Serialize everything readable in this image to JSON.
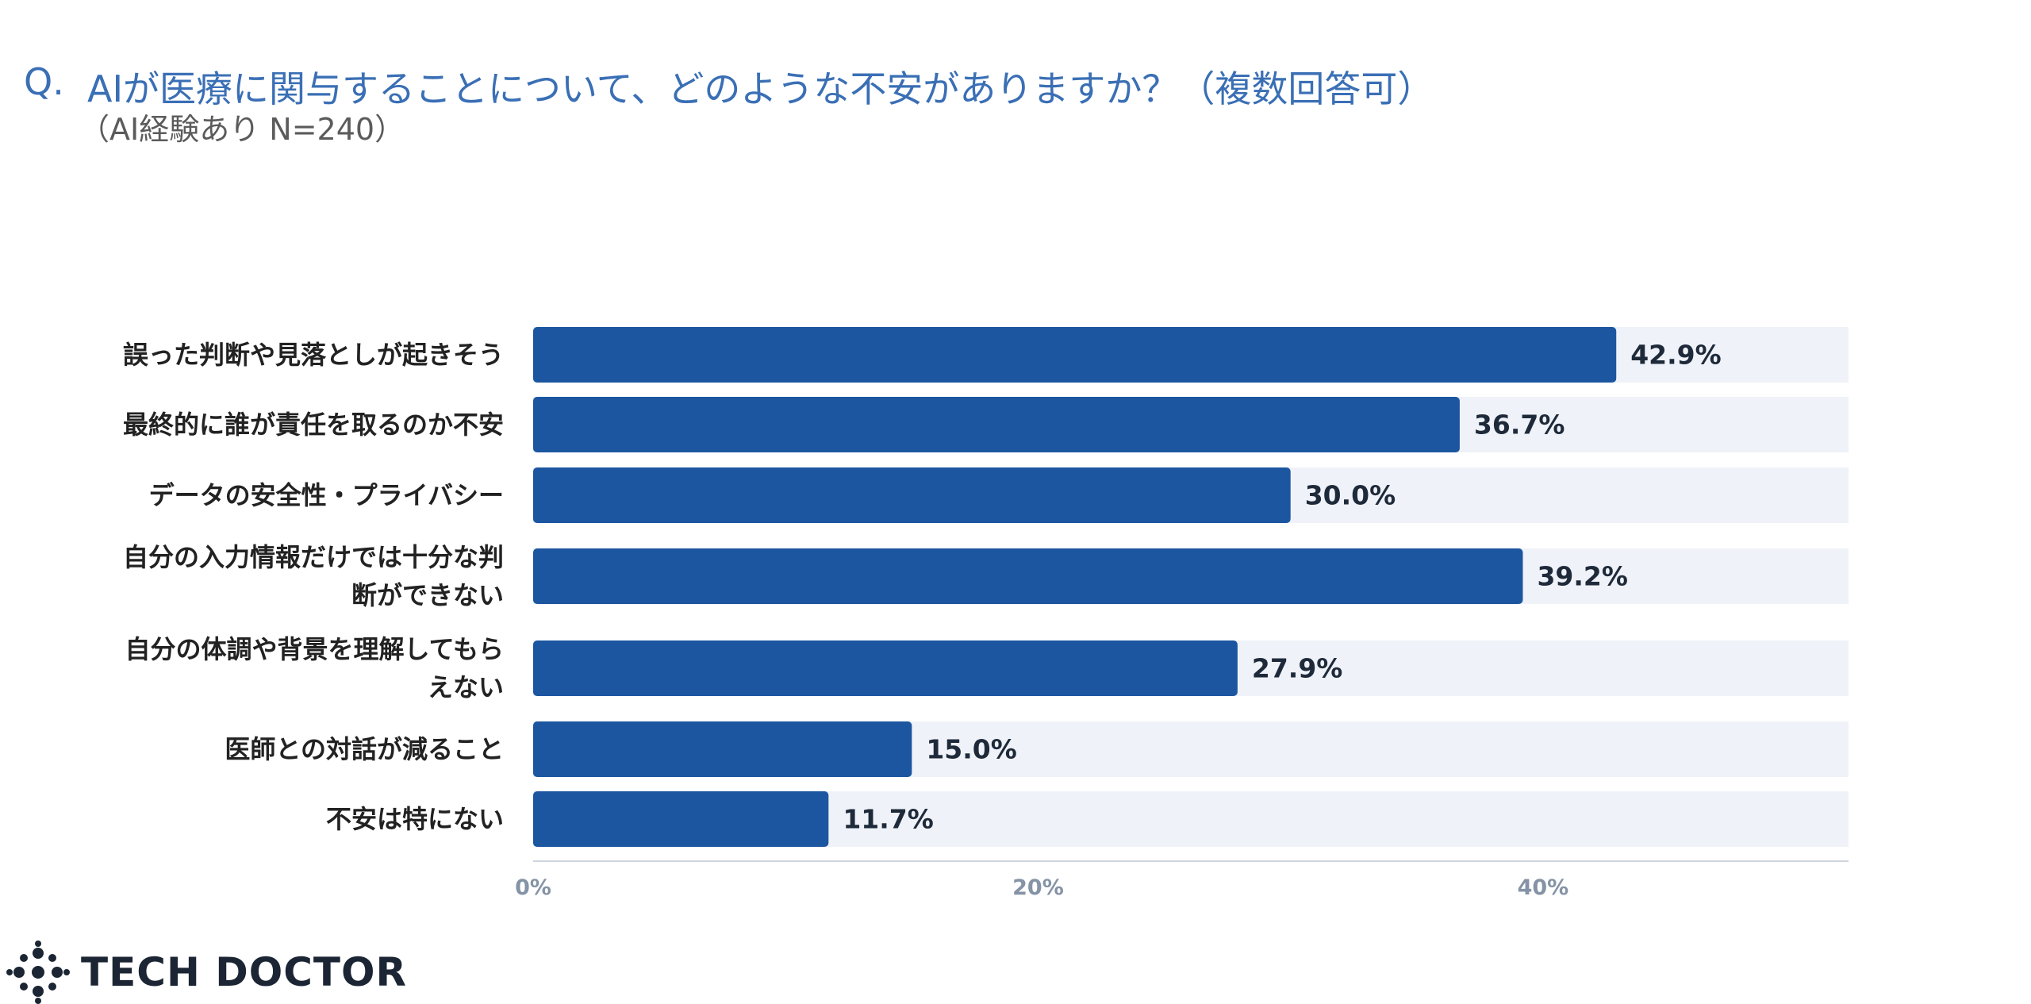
{
  "header": {
    "prefix": "Q.",
    "title": "AIが医療に関与することについて、どのような不安がありますか？（複数回答可）",
    "subtitle": "（AI経験あり N=240）"
  },
  "brand": {
    "logo_text": "TECH DOCTOR"
  },
  "colors": {
    "bar": "#1c56a0",
    "track": "#eff2f8",
    "axis": "#cfd5df"
  },
  "chart_data": {
    "type": "bar",
    "orientation": "horizontal",
    "categories": [
      "誤った判断や見落としが起きそう",
      "最終的に誰が責任を取るのか不安",
      "データの安全性・プライバシー",
      "自分の入力情報だけでは十分な判断ができない",
      "自分の体調や背景を理解してもらえない",
      "医師との対話が減ること",
      "不安は特にない"
    ],
    "category_lines": [
      [
        "誤った判断や見落としが起きそう"
      ],
      [
        "最終的に誰が責任を取るのか不安"
      ],
      [
        "データの安全性・プライバシー"
      ],
      [
        "自分の入力情報だけでは十分な判",
        "断ができない"
      ],
      [
        "自分の体調や背景を理解してもら",
        "えない"
      ],
      [
        "医師との対話が減ること"
      ],
      [
        "不安は特にない"
      ]
    ],
    "values": [
      42.9,
      36.7,
      30.0,
      39.2,
      27.9,
      15.0,
      11.7
    ],
    "value_labels": [
      "42.9%",
      "36.7%",
      "30.0%",
      "39.2%",
      "27.9%",
      "15.0%",
      "11.7%"
    ],
    "xlim": [
      0,
      52.1
    ],
    "ticks": [
      0,
      20,
      40
    ],
    "tick_labels": [
      "0%",
      "20%",
      "40%"
    ],
    "grid": false
  }
}
